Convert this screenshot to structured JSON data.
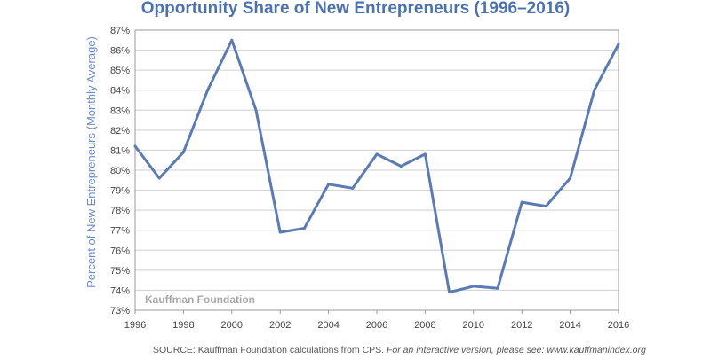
{
  "chart_data": {
    "type": "line",
    "title": "Opportunity Share of New Entrepreneurs (1996–2016)",
    "xlabel": "",
    "ylabel": "Percent of New Entrepreneurs (Monthly Average)",
    "x": [
      1996,
      1997,
      1998,
      1999,
      2000,
      2001,
      2002,
      2003,
      2004,
      2005,
      2006,
      2007,
      2008,
      2009,
      2010,
      2011,
      2012,
      2013,
      2014,
      2015,
      2016
    ],
    "values": [
      81.2,
      79.6,
      80.9,
      84.0,
      86.5,
      83.0,
      76.9,
      77.1,
      79.3,
      79.1,
      80.8,
      80.2,
      80.8,
      73.9,
      74.2,
      74.1,
      78.4,
      78.2,
      79.6,
      84.0,
      86.3
    ],
    "xticks": [
      "1996",
      "1998",
      "2000",
      "2002",
      "2004",
      "2006",
      "2008",
      "2010",
      "2012",
      "2014",
      "2016"
    ],
    "yticks": [
      "73%",
      "74%",
      "75%",
      "76%",
      "77%",
      "78%",
      "79%",
      "80%",
      "81%",
      "82%",
      "83%",
      "84%",
      "85%",
      "86%",
      "87%"
    ],
    "xlim": [
      1996,
      2016
    ],
    "ylim": [
      73,
      87
    ],
    "grid": "horizontal",
    "line_color": "#5b7bb3",
    "watermark": "Kauffman Foundation"
  },
  "source": {
    "text": "SOURCE: Kauffman Foundation calculations from CPS.",
    "italic": "For an interactive version, please see: www.kauffmanindex.org"
  }
}
